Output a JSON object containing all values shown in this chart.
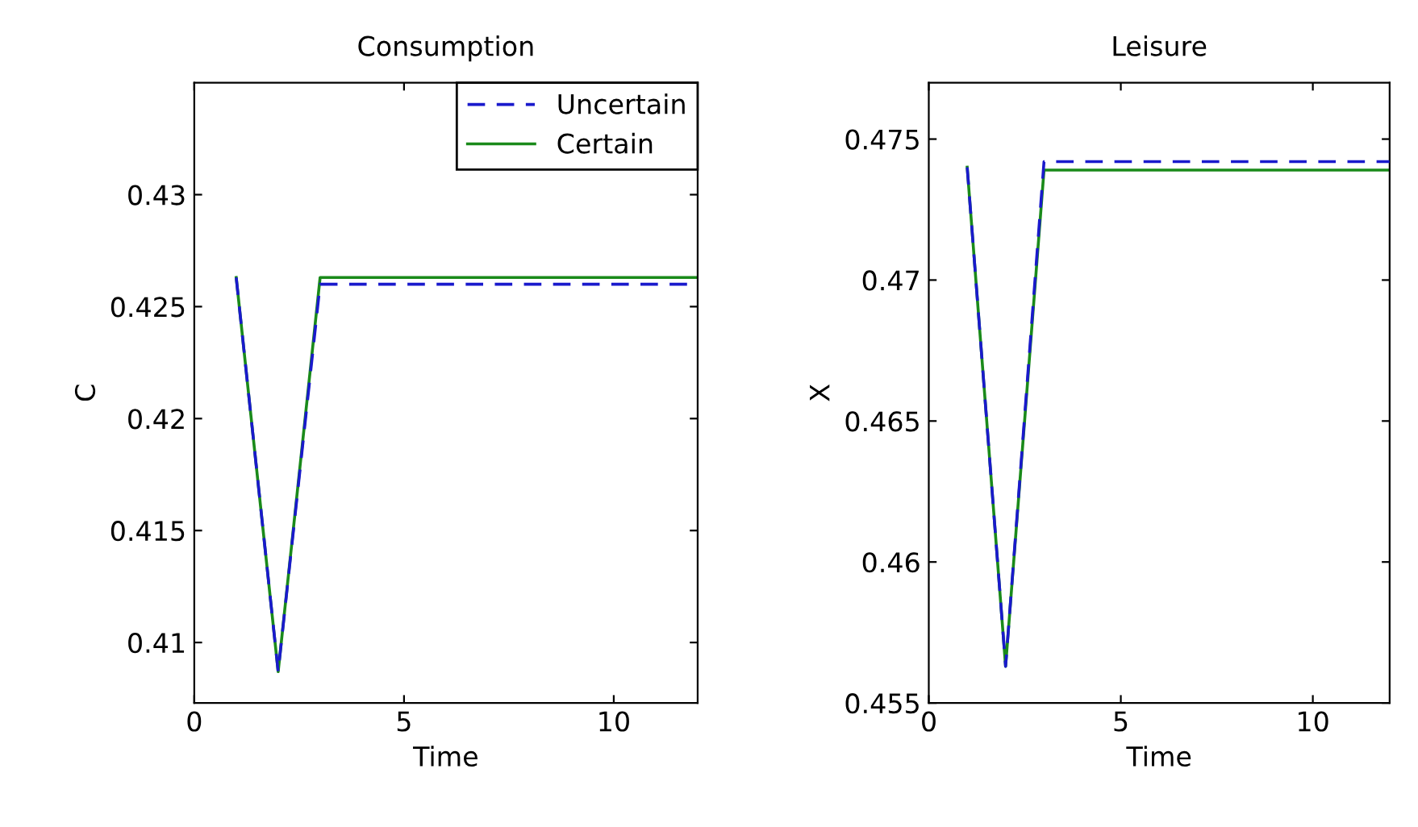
{
  "chart_data": [
    {
      "type": "line",
      "title": "Consumption",
      "xlabel": "Time",
      "ylabel": "C",
      "xlim": [
        0,
        12
      ],
      "xticks": [
        0,
        5,
        10
      ],
      "ylim": [
        0.4073,
        0.435
      ],
      "yticks": [
        0.41,
        0.415,
        0.42,
        0.425,
        0.43
      ],
      "legend": "top right",
      "grid": false,
      "x": [
        1,
        2,
        3,
        4,
        5,
        6,
        7,
        8,
        9,
        10,
        11,
        12
      ],
      "series": [
        {
          "name": "Uncertain",
          "color": "#1a1acc",
          "line_style": "dashed",
          "values": [
            0.4263,
            0.4087,
            0.426,
            0.426,
            0.426,
            0.426,
            0.426,
            0.426,
            0.426,
            0.426,
            0.426,
            0.426
          ]
        },
        {
          "name": "Certain",
          "color": "#1a8a1a",
          "line_style": "solid",
          "values": [
            0.4263,
            0.4087,
            0.4263,
            0.4263,
            0.4263,
            0.4263,
            0.4263,
            0.4263,
            0.4263,
            0.4263,
            0.4263,
            0.4263
          ]
        }
      ]
    },
    {
      "type": "line",
      "title": "Leisure",
      "xlabel": "Time",
      "ylabel": "X",
      "xlim": [
        0,
        12
      ],
      "xticks": [
        0,
        5,
        10
      ],
      "ylim": [
        0.455,
        0.477
      ],
      "yticks": [
        0.455,
        0.46,
        0.465,
        0.47,
        0.475
      ],
      "grid": false,
      "x": [
        1,
        2,
        3,
        4,
        5,
        6,
        7,
        8,
        9,
        10,
        11,
        12
      ],
      "series": [
        {
          "color": "#1a1acc",
          "line_style": "dashed",
          "values": [
            0.474,
            0.4563,
            0.4742,
            0.4742,
            0.4742,
            0.4742,
            0.4742,
            0.4742,
            0.4742,
            0.4742,
            0.4742,
            0.4742
          ]
        },
        {
          "color": "#1a8a1a",
          "line_style": "solid",
          "values": [
            0.474,
            0.4563,
            0.4739,
            0.4739,
            0.4739,
            0.4739,
            0.4739,
            0.4739,
            0.4739,
            0.4739,
            0.4739,
            0.4739
          ]
        }
      ]
    }
  ]
}
